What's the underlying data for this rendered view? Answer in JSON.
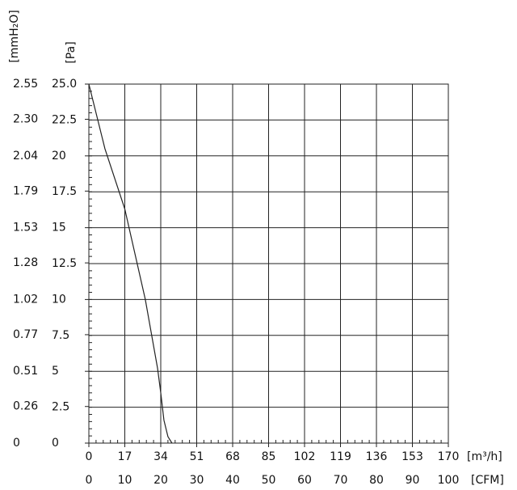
{
  "chart_data": {
    "type": "line",
    "y_label": "[Pa]",
    "y2_label": "[mmH₂O]",
    "x_label": "[m³/h]",
    "x2_label": "[CFM]",
    "xlim": [
      0,
      170
    ],
    "xticks": [
      0,
      17,
      34,
      51,
      68,
      85,
      102,
      119,
      136,
      153,
      170
    ],
    "x2lim": [
      0,
      100
    ],
    "x2ticks": [
      0,
      10,
      20,
      30,
      40,
      50,
      60,
      70,
      80,
      90,
      100
    ],
    "ylim": [
      0,
      25
    ],
    "yticks": [
      0,
      2.5,
      5,
      7.5,
      10,
      12.5,
      15,
      17.5,
      20,
      22.5,
      {
        "value": 25,
        "label": "25.0"
      }
    ],
    "y2lim": [
      0,
      2.55
    ],
    "y2ticks": [
      0,
      0.26,
      0.51,
      0.77,
      1.02,
      1.28,
      1.53,
      1.79,
      2.04,
      {
        "value": 2.3,
        "label": "2.30"
      },
      2.55
    ],
    "grid": true,
    "series": [
      {
        "color": "#222222",
        "x": [
          0,
          7.6,
          17,
          26.7,
          32.5,
          34,
          35.5,
          37.4,
          39.3
        ],
        "values": [
          25,
          20.5,
          16.3,
          10,
          5.2,
          3.5,
          1.6,
          0.45,
          0
        ]
      }
    ]
  }
}
